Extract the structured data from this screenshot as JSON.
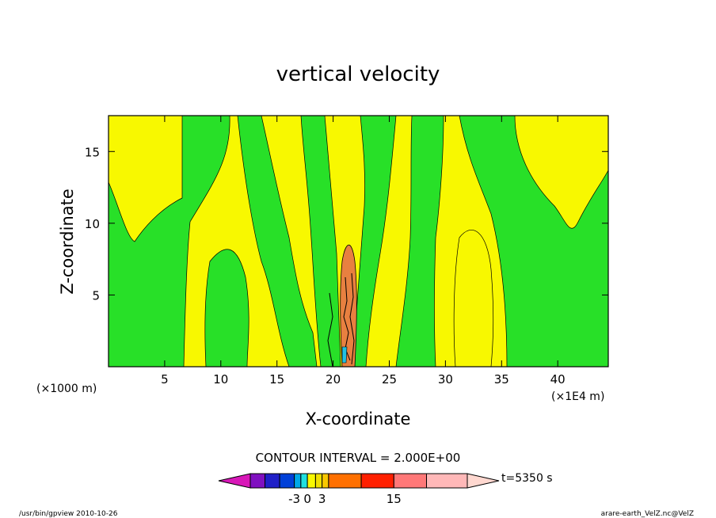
{
  "chart_data": {
    "type": "heatmap",
    "title": "vertical velocity",
    "xlabel": "X-coordinate",
    "ylabel": "Z-coordinate",
    "x_unit_left": "(×1000 m)",
    "x_unit_right": "(×1E4 m)",
    "xlim": [
      0,
      44.5
    ],
    "ylim": [
      0,
      17.5
    ],
    "x_ticks": [
      5,
      10,
      15,
      20,
      25,
      30,
      35,
      40
    ],
    "y_ticks": [
      5,
      10,
      15
    ],
    "contour_interval": "CONTOUR INTERVAL = 2.000E+00",
    "colorbar": {
      "colors": [
        "#d818b8",
        "#8010c0",
        "#2020c8",
        "#0040d8",
        "#00a8e8",
        "#20e0e0",
        "#f8f800",
        "#f0e000",
        "#f8c800",
        "#ff7000",
        "#ff2000",
        "#ff7878",
        "#ffb8b8",
        "#ffd8d0"
      ],
      "tick_labels": [
        "-3",
        "0",
        "3",
        "15"
      ]
    },
    "time_label": "t=5350 s"
  },
  "footer": {
    "left": "/usr/bin/gpview   2010-10-26",
    "right": "arare-earth_VelZ.nc@VelZ"
  },
  "colors": {
    "yellow": "#f8f800",
    "green": "#28e028",
    "orange": "#e88040",
    "black": "#000000"
  }
}
